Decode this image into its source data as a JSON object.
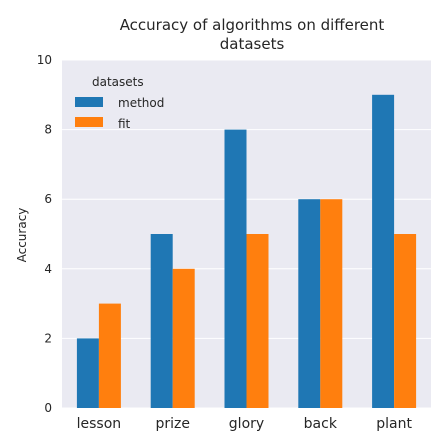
{
  "chart_data": {
    "type": "bar",
    "title_line1": "Accuracy of algorithms on different",
    "title_line2": "datasets",
    "xlabel": "",
    "ylabel": "Accuracy",
    "ylim": [
      0,
      10
    ],
    "yticks": [
      0,
      2,
      4,
      6,
      8,
      10
    ],
    "categories": [
      "lesson",
      "prize",
      "glory",
      "back",
      "plant"
    ],
    "series": [
      {
        "name": "method",
        "color": "#1f77b4",
        "values": [
          2,
          5,
          8,
          6,
          9
        ]
      },
      {
        "name": "fit",
        "color": "#ff7f0e",
        "values": [
          3,
          4,
          5,
          6,
          5
        ]
      }
    ],
    "legend": {
      "title": "datasets",
      "placement": "top-left"
    },
    "grid": true,
    "background": "#eaeaf2"
  }
}
